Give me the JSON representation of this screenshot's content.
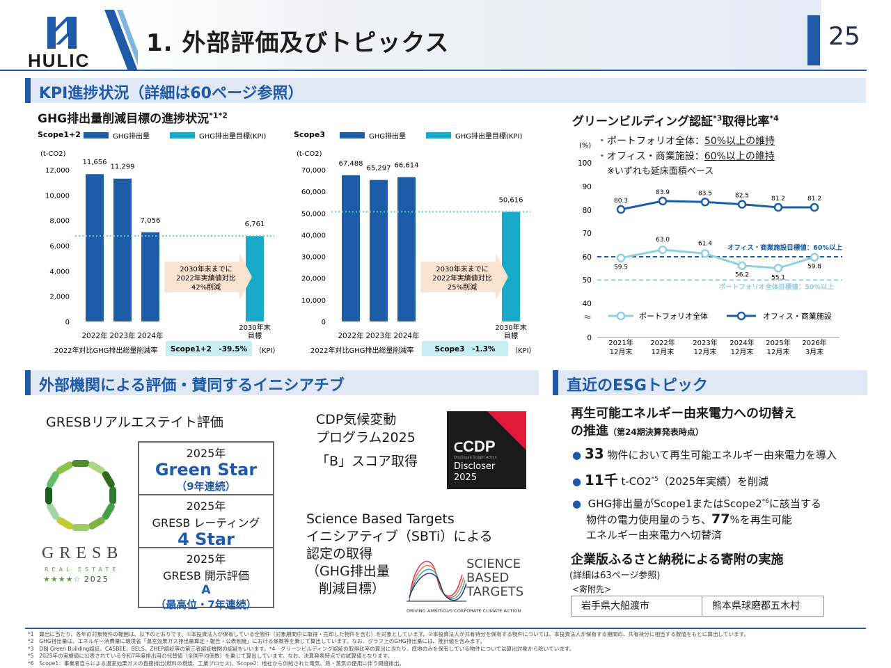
{
  "header": {
    "logo_text": "HULIC",
    "title": "1. 外部評価及びトピックス",
    "page_number": "25"
  },
  "kpi_section": {
    "title": "KPI進捗状況（詳細は60ページ参照）"
  },
  "ghg": {
    "title": "GHG排出量削減目標の進捗状況",
    "title_sup": "*1*2",
    "scope12": {
      "label": "Scope1+2",
      "unit": "(t-CO2)",
      "legend_actual": "GHG排出量",
      "legend_kpi": "GHG排出量目標(KPI)",
      "note_lines": [
        "2030年末までに",
        "2022年実績値対比",
        "42%削減"
      ],
      "reduction_label": "2022年対比GHG排出総量削減率",
      "reduction_value": "Scope1+2　-39.5%",
      "kpi_tag": "（KPI）",
      "target_label_1": "2030年末",
      "target_label_2": "目標"
    },
    "scope3": {
      "label": "Scope3",
      "unit": "(t-CO2)",
      "legend_actual": "GHG排出量",
      "legend_kpi": "GHG排出量目標(KPI)",
      "note_lines": [
        "2030年末までに",
        "2022年実績値対比",
        "25%削減"
      ],
      "reduction_label": "2022年対比GHG排出総量削減率",
      "reduction_value": "Scope3　-1.3%",
      "kpi_tag": "（KPI）",
      "target_label_1": "2030年末",
      "target_label_2": "目標"
    }
  },
  "green": {
    "title": "グリーンビルディング認証",
    "title_sup1": "*3",
    "title_mid": "取得比率",
    "title_sup2": "*4",
    "bullet1_prefix": "ポートフォリオ全体：",
    "bullet1_target": "50%以上の維持",
    "bullet2_prefix": "オフィス・商業施設：",
    "bullet2_target": "60%以上の維持",
    "note": "※いずれも延床面積ベース",
    "office_target_label": "オフィス・商業施設目標値：60%以上",
    "portfolio_target_label": "ポートフォリオ全体目標値：50%以上"
  },
  "chart_data": [
    {
      "type": "bar",
      "title": "Scope1+2",
      "ylabel": "(t-CO2)",
      "categories": [
        "2022年",
        "2023年",
        "2024年",
        "2030年末目標"
      ],
      "series": [
        {
          "name": "GHG排出量",
          "values": [
            11656,
            11299,
            7056,
            null
          ]
        },
        {
          "name": "GHG排出量目標(KPI)",
          "values": [
            null,
            null,
            null,
            6761
          ]
        }
      ],
      "data_labels": [
        "11,656",
        "11,299",
        "7,056",
        "6,761"
      ],
      "ylim": [
        0,
        12000
      ],
      "ticks": [
        "0",
        "2,000",
        "4,000",
        "6,000",
        "8,000",
        "10,000",
        "12,000"
      ],
      "target_line": 6761,
      "colors": {
        "actual": "#1d5ca6",
        "kpi": "#18aac8"
      }
    },
    {
      "type": "bar",
      "title": "Scope3",
      "ylabel": "(t-CO2)",
      "categories": [
        "2022年",
        "2023年",
        "2024年",
        "2030年末目標"
      ],
      "series": [
        {
          "name": "GHG排出量",
          "values": [
            67488,
            65297,
            66614,
            null
          ]
        },
        {
          "name": "GHG排出量目標(KPI)",
          "values": [
            null,
            null,
            null,
            50616
          ]
        }
      ],
      "data_labels": [
        "67,488",
        "65,297",
        "66,614",
        "50,616"
      ],
      "ylim": [
        0,
        70000
      ],
      "ticks": [
        "0",
        "10,000",
        "20,000",
        "30,000",
        "40,000",
        "50,000",
        "60,000",
        "70,000"
      ],
      "target_line": 50616,
      "colors": {
        "actual": "#1d5ca6",
        "kpi": "#18aac8"
      }
    },
    {
      "type": "line",
      "title": "グリーンビルディング認証取得比率",
      "ylabel": "(%)",
      "categories": [
        [
          "2021年",
          "12月末"
        ],
        [
          "2022年",
          "12月末"
        ],
        [
          "2023年",
          "12月末"
        ],
        [
          "2024年",
          "12月末"
        ],
        [
          "2025年",
          "12月末"
        ],
        [
          "2026年",
          "3月末"
        ]
      ],
      "series": [
        {
          "name": "オフィス・商業施設",
          "values": [
            80.3,
            83.9,
            83.5,
            82.5,
            81.2,
            81.2
          ],
          "labels": [
            "80.3",
            "83.9",
            "83.5",
            "82.5",
            "81.2",
            "81.2"
          ],
          "color": "#1d5ca6"
        },
        {
          "name": "ポートフォリオ全体",
          "values": [
            59.5,
            63.0,
            61.4,
            56.2,
            55.1,
            59.8
          ],
          "labels": [
            "59.5",
            "63.0",
            "61.4",
            "56.2",
            "55.1",
            "59.8"
          ],
          "color": "#8fcfdf"
        }
      ],
      "ticks": [
        "0",
        "40",
        "50",
        "60",
        "70",
        "80",
        "90",
        "100"
      ],
      "ylim": [
        40,
        100
      ],
      "broken_axis": true,
      "target_lines": [
        60,
        50
      ]
    }
  ],
  "external": {
    "title": "外部機関による評価・賛同するイニシアチブ",
    "gresb_title": "GRESBリアルエステイト評価",
    "gresb_logo_text": "GRESB",
    "gresb_logo_sub": "REAL ESTATE",
    "gresb_logo_year": "2025",
    "box": [
      {
        "year": "2025年",
        "value": "Green Star",
        "sub": "（9年連続）"
      },
      {
        "year": "2025年",
        "label": "GRESB レーティング",
        "value": "4 Star"
      },
      {
        "year": "2025年",
        "label": "GRESB 開示評価",
        "value": "A",
        "sub": "（最高位・7年連続）"
      }
    ],
    "cdp_line1": "CDP気候変動",
    "cdp_line2": "プログラム2025",
    "cdp_line3": "「B」スコア取得",
    "cdp_logo": "CDP",
    "cdp_logo_sub1": "Disclosure Insight Action",
    "cdp_logo_sub2": "Discloser",
    "cdp_logo_sub3": "2025",
    "sbt_line1": "Science Based Targets",
    "sbt_line2": "イニシアティブ（SBTi）による",
    "sbt_line3": "認定の取得",
    "sbt_line4": "（GHG排出量",
    "sbt_line5": "削減目標）",
    "sbt_logo_1": "SCIENCE",
    "sbt_logo_2": "BASED",
    "sbt_logo_3": "TARGETS",
    "sbt_logo_tag": "DRIVING AMBITIOUS CORPORATE CLIMATE ACTION"
  },
  "esg": {
    "title": "直近のESGトピック",
    "topic1_line1": "再生可能エネルギー由来電力への切替え",
    "topic1_line2": "の推進",
    "topic1_note": "（第24期決算発表時点）",
    "b1_num": "33",
    "b1_text": "物件において再生可能エネルギー由来電力を導入",
    "b2_num": "11千",
    "b2_text": "t-CO2",
    "b2_sup": "*5",
    "b2_text2": "（2025年実績）を削減",
    "b3_text1": "GHG排出量がScope1またはScope2",
    "b3_sup": "*6",
    "b3_text2": "に該当する",
    "b3_line2a": "物件の電力使用量のうち、",
    "b3_num": "77",
    "b3_line2b": "%を再生可能",
    "b3_line3": "エネルギー由来電力へ切替済",
    "topic2_title": "企業版ふるさと納税による寄附の実施",
    "topic2_note": "(詳細は63ページ参照)",
    "donee_label": "<寄附先>",
    "donees": [
      "岩手県大船渡市",
      "熊本県球磨郡五木村"
    ]
  },
  "footnotes": [
    "*1　算出に当たり、各年の対象物件の範囲は、以下のとおりです。①本投資法人が保有している全物件（対象期間中に取得・売却した物件を含む）を対象としています。②本投資法人が共有持分を保有する物件については、本投資法人が保有する期間の、共有持分に相当する数値をもとに算出しています。",
    "*2　GHG排出量は、エネルギー消費量に環境省「温室効果ガス排出量算定・報告・公表制度」における係数等を乗じて算出しています。なお、グラフ上のGHG排出量には、推計値を含みます。",
    "*3　DBJ Green Building認証、CASBEE、BELS、ZHEP認証等の第三者認証機関の認証をいいます。*4　グリーンビルディング認証の取得比率の算出に当たり、底地のみを保有している物件については算出対象から除いています。",
    "*5　2025年の実績値に公表されている令和7年度排出用の代替値（全国平均係数）を乗じて算出しています。なお、決算発表時点での試算値となります。",
    "*6　Scope1：事業者自らによる温室効果ガスの直接排出(燃料の燃焼、工業プロセス)、Scope2：他社から供給された電気、熱・蒸気の使用に伴う間接排出。"
  ]
}
